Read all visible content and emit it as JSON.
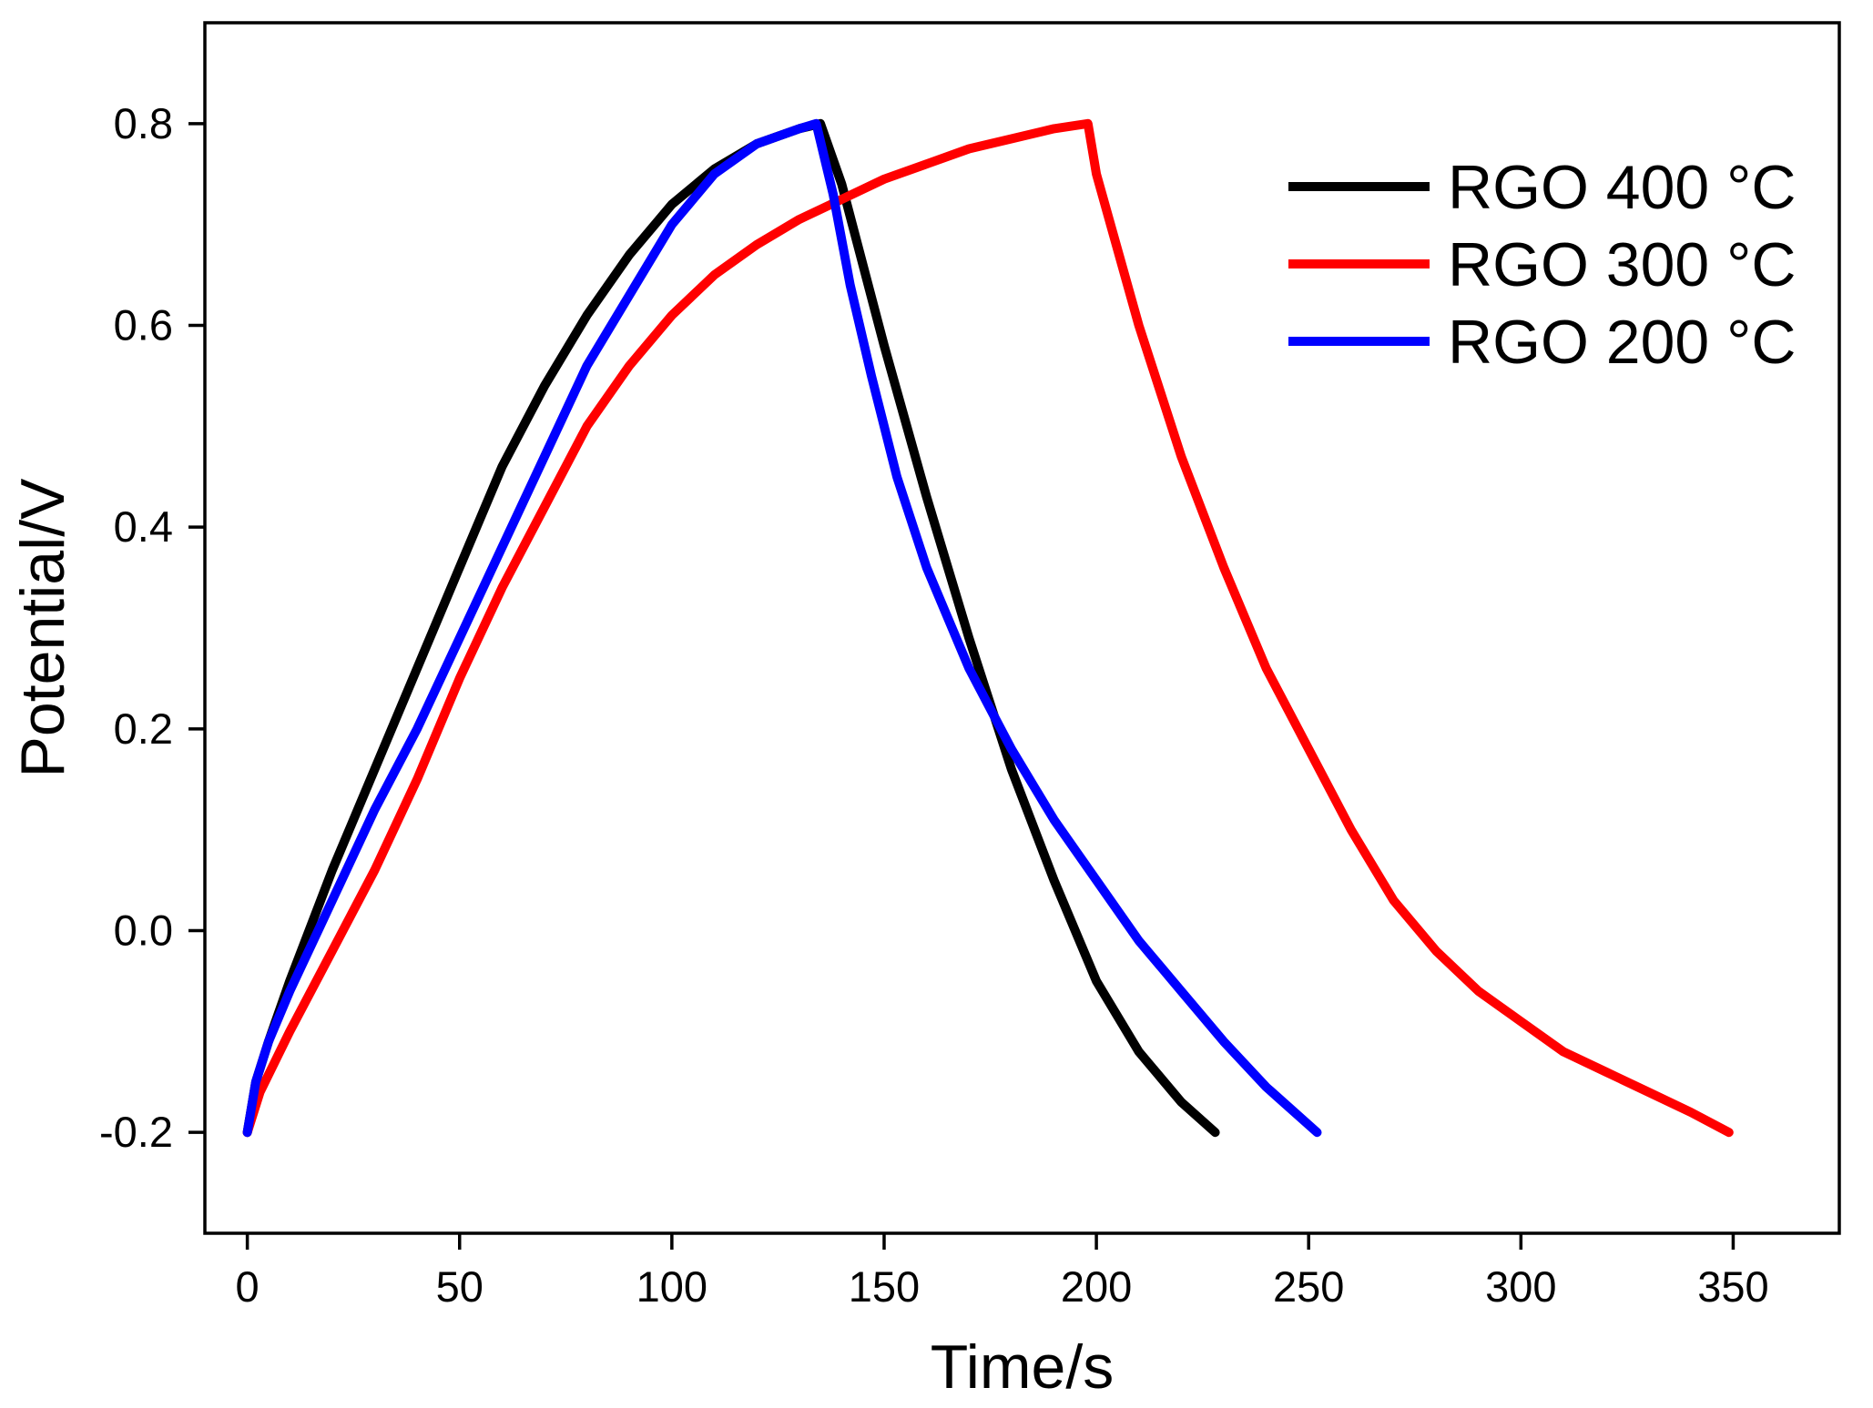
{
  "chart_data": {
    "type": "line",
    "title": "",
    "xlabel": "Time/s",
    "ylabel": "Potential/V",
    "xlim": [
      -10,
      375
    ],
    "ylim": [
      -0.3,
      0.9
    ],
    "xticks": [
      0,
      50,
      100,
      150,
      200,
      250,
      300,
      350
    ],
    "yticks": [
      -0.2,
      0.0,
      0.2,
      0.4,
      0.6,
      0.8
    ],
    "xtick_labels": [
      "0",
      "50",
      "100",
      "150",
      "200",
      "250",
      "300",
      "350"
    ],
    "ytick_labels": [
      "-0.2",
      "0.0",
      "0.2",
      "0.4",
      "0.6",
      "0.8"
    ],
    "grid": false,
    "legend_position": "top-right",
    "series": [
      {
        "name": "RGO 400 °C",
        "color": "#000000",
        "points": [
          [
            0,
            -0.2
          ],
          [
            2,
            -0.15
          ],
          [
            5,
            -0.11
          ],
          [
            10,
            -0.05
          ],
          [
            20,
            0.06
          ],
          [
            30,
            0.16
          ],
          [
            40,
            0.26
          ],
          [
            50,
            0.36
          ],
          [
            60,
            0.46
          ],
          [
            70,
            0.54
          ],
          [
            80,
            0.61
          ],
          [
            90,
            0.67
          ],
          [
            100,
            0.72
          ],
          [
            110,
            0.755
          ],
          [
            120,
            0.78
          ],
          [
            130,
            0.795
          ],
          [
            135,
            0.8
          ],
          [
            140,
            0.74
          ],
          [
            145,
            0.66
          ],
          [
            150,
            0.58
          ],
          [
            160,
            0.43
          ],
          [
            170,
            0.29
          ],
          [
            180,
            0.16
          ],
          [
            190,
            0.05
          ],
          [
            200,
            -0.05
          ],
          [
            210,
            -0.12
          ],
          [
            220,
            -0.17
          ],
          [
            228,
            -0.2
          ]
        ]
      },
      {
        "name": "RGO 300 °C",
        "color": "#ff0000",
        "points": [
          [
            0,
            -0.2
          ],
          [
            3,
            -0.16
          ],
          [
            10,
            -0.1
          ],
          [
            20,
            -0.02
          ],
          [
            30,
            0.06
          ],
          [
            40,
            0.15
          ],
          [
            50,
            0.25
          ],
          [
            60,
            0.34
          ],
          [
            70,
            0.42
          ],
          [
            80,
            0.5
          ],
          [
            90,
            0.56
          ],
          [
            100,
            0.61
          ],
          [
            110,
            0.65
          ],
          [
            120,
            0.68
          ],
          [
            130,
            0.705
          ],
          [
            140,
            0.725
          ],
          [
            150,
            0.745
          ],
          [
            160,
            0.76
          ],
          [
            170,
            0.775
          ],
          [
            180,
            0.785
          ],
          [
            190,
            0.795
          ],
          [
            198,
            0.8
          ],
          [
            200,
            0.75
          ],
          [
            210,
            0.6
          ],
          [
            220,
            0.47
          ],
          [
            230,
            0.36
          ],
          [
            240,
            0.26
          ],
          [
            250,
            0.18
          ],
          [
            260,
            0.1
          ],
          [
            270,
            0.03
          ],
          [
            280,
            -0.02
          ],
          [
            290,
            -0.06
          ],
          [
            300,
            -0.09
          ],
          [
            310,
            -0.12
          ],
          [
            320,
            -0.14
          ],
          [
            330,
            -0.16
          ],
          [
            340,
            -0.18
          ],
          [
            349,
            -0.2
          ]
        ]
      },
      {
        "name": "RGO 200 °C",
        "color": "#0000ff",
        "points": [
          [
            0,
            -0.2
          ],
          [
            2,
            -0.15
          ],
          [
            5,
            -0.11
          ],
          [
            10,
            -0.06
          ],
          [
            20,
            0.03
          ],
          [
            30,
            0.12
          ],
          [
            40,
            0.2
          ],
          [
            50,
            0.29
          ],
          [
            60,
            0.38
          ],
          [
            70,
            0.47
          ],
          [
            80,
            0.56
          ],
          [
            90,
            0.63
          ],
          [
            100,
            0.7
          ],
          [
            110,
            0.75
          ],
          [
            120,
            0.78
          ],
          [
            130,
            0.795
          ],
          [
            134,
            0.8
          ],
          [
            138,
            0.73
          ],
          [
            142,
            0.64
          ],
          [
            147,
            0.55
          ],
          [
            153,
            0.45
          ],
          [
            160,
            0.36
          ],
          [
            170,
            0.26
          ],
          [
            180,
            0.18
          ],
          [
            190,
            0.11
          ],
          [
            200,
            0.05
          ],
          [
            210,
            -0.01
          ],
          [
            220,
            -0.06
          ],
          [
            230,
            -0.11
          ],
          [
            240,
            -0.155
          ],
          [
            252,
            -0.2
          ]
        ]
      }
    ]
  }
}
